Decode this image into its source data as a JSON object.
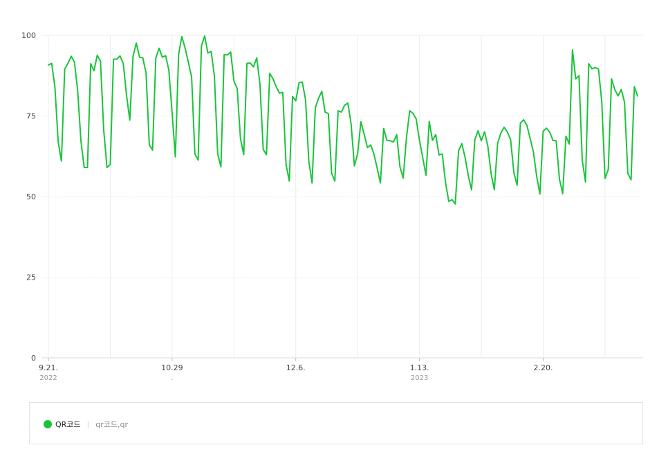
{
  "colors": {
    "line": "#19c43a",
    "grid": "#ececec",
    "axis": "#d8d8d8"
  },
  "legend": {
    "icon": "green-circle",
    "name": "QR코드",
    "separator": "|",
    "keywords": "qr코드,qr"
  },
  "chart_data": {
    "type": "line",
    "title": "",
    "xlabel": "",
    "ylabel": "",
    "ylim": [
      0,
      100
    ],
    "yticks": [
      "0",
      "25",
      "50",
      "75",
      "100"
    ],
    "grid": true,
    "legend_position": "bottom",
    "xtick_labels": [
      {
        "label": "9.21.",
        "sub": "2022",
        "index": 0
      },
      {
        "label": "10.29",
        "sub": ".",
        "index": 38
      },
      {
        "label": "12.6.",
        "sub": "",
        "index": 76
      },
      {
        "label": "1.13.",
        "sub": "2023",
        "index": 114
      },
      {
        "label": "2.20.",
        "sub": "",
        "index": 152
      }
    ],
    "x_start": "2022-09-21",
    "x_end": "2023-03-31",
    "series": [
      {
        "name": "QR코드",
        "color": "#19c43a",
        "values": [
          90.8,
          91.3,
          84.0,
          67.0,
          61.0,
          89.5,
          91.3,
          93.5,
          91.7,
          82.7,
          67.2,
          59.0,
          59.0,
          91.2,
          89.0,
          93.8,
          92.0,
          70.5,
          59.0,
          59.9,
          92.6,
          92.6,
          93.6,
          91.3,
          81.4,
          73.7,
          93.5,
          97.6,
          93.2,
          93.0,
          88.3,
          66.0,
          64.4,
          93.0,
          96.0,
          93.2,
          93.7,
          89.2,
          76.0,
          62.3,
          94.1,
          99.6,
          96.0,
          91.6,
          87.0,
          63.2,
          61.3,
          96.6,
          99.8,
          94.5,
          95.0,
          87.3,
          63.3,
          59.2,
          94.0,
          93.9,
          94.8,
          85.8,
          83.5,
          68.0,
          63.0,
          91.3,
          91.4,
          90.2,
          93.0,
          84.7,
          64.6,
          63.0,
          88.2,
          86.5,
          84.0,
          82.0,
          82.3,
          60.0,
          54.8,
          81.0,
          79.7,
          85.3,
          85.5,
          80.0,
          61.0,
          54.2,
          77.5,
          80.5,
          82.6,
          76.2,
          75.7,
          57.3,
          54.8,
          76.6,
          76.2,
          78.3,
          79.0,
          72.4,
          59.5,
          63.3,
          73.2,
          69.3,
          65.2,
          66.0,
          63.2,
          58.8,
          54.2,
          71.1,
          67.4,
          67.3,
          66.9,
          69.2,
          59.2,
          55.7,
          68.3,
          76.6,
          75.8,
          74.0,
          67.4,
          62.0,
          56.6,
          73.3,
          67.4,
          69.2,
          62.9,
          63.2,
          54.3,
          48.5,
          49.0,
          47.7,
          64.2,
          66.4,
          62.2,
          56.4,
          52.1,
          67.6,
          70.4,
          67.3,
          70.1,
          65.6,
          57.1,
          52.1,
          66.5,
          69.7,
          71.5,
          70.0,
          67.6,
          57.4,
          53.5,
          72.8,
          73.8,
          72.1,
          68.0,
          63.8,
          56.3,
          50.8,
          70.3,
          71.2,
          70.0,
          67.4,
          67.3,
          55.4,
          50.9,
          68.7,
          66.3,
          95.5,
          86.5,
          87.5,
          61.3,
          54.5,
          91.2,
          89.6,
          90.0,
          89.5,
          79.4,
          55.6,
          58.4,
          86.5,
          83.2,
          81.2,
          83.2,
          79.2,
          57.2,
          55.2,
          84.1,
          81.2
        ]
      }
    ]
  }
}
